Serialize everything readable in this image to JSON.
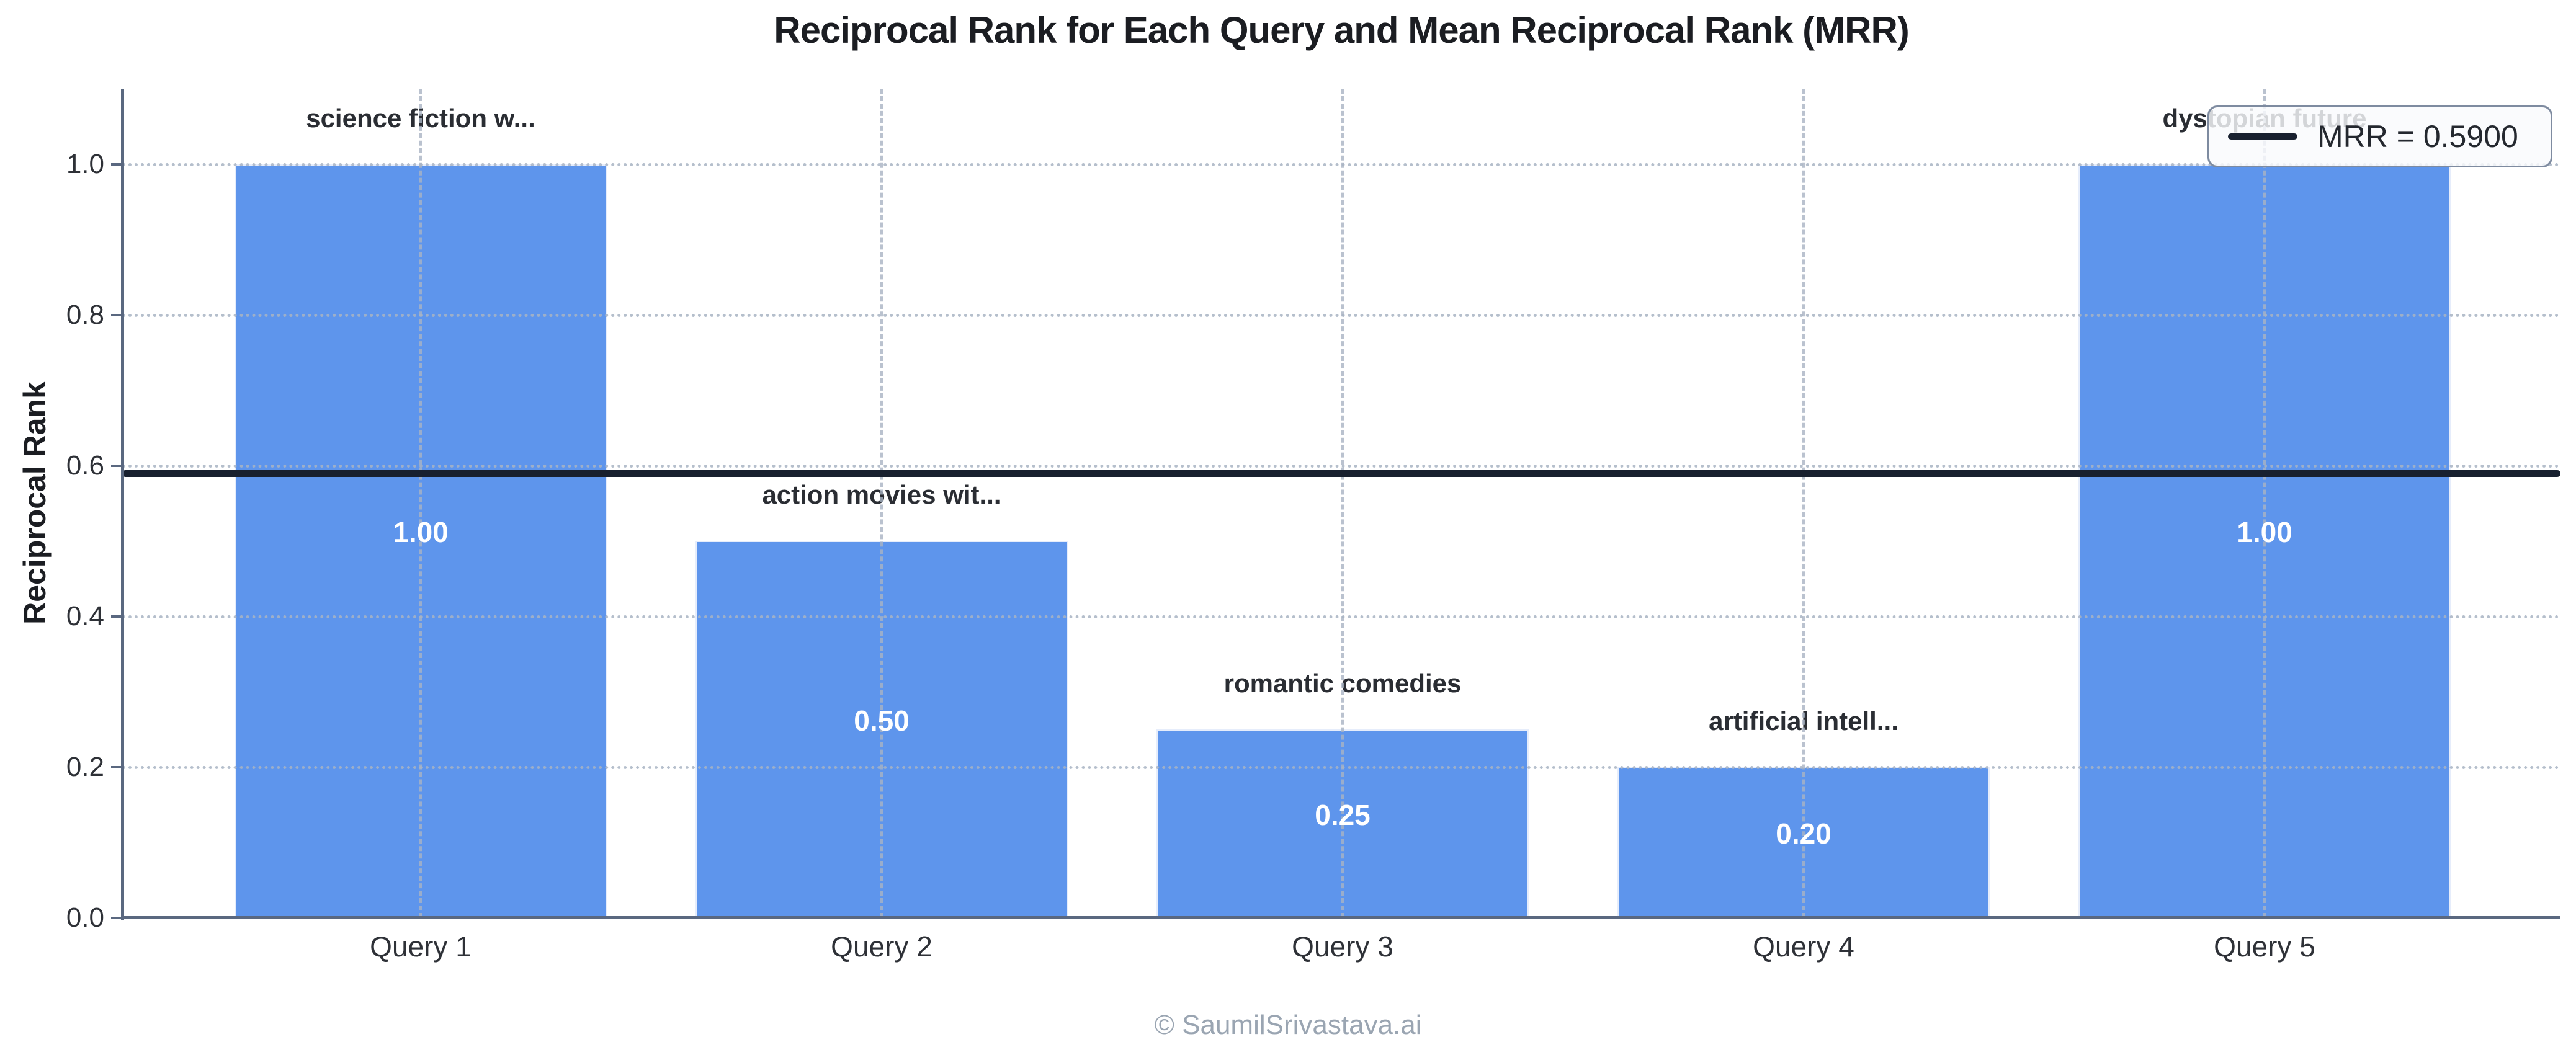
{
  "chart_data": {
    "type": "bar",
    "title": "Reciprocal Rank for Each Query and Mean Reciprocal Rank (MRR)",
    "ylabel": "Reciprocal Rank",
    "xlabel": "",
    "categories": [
      "Query 1",
      "Query 2",
      "Query 3",
      "Query 4",
      "Query 5"
    ],
    "values": [
      1.0,
      0.5,
      0.25,
      0.2,
      1.0
    ],
    "value_labels": [
      "1.00",
      "0.50",
      "0.25",
      "0.20",
      "1.00"
    ],
    "bar_annotations": [
      "science fiction w...",
      "action movies wit...",
      "romantic comedies",
      "artificial intell...",
      "dystopian future"
    ],
    "ylim": [
      0.0,
      1.1
    ],
    "yticks": [
      {
        "value": 0.0,
        "label": "0.0"
      },
      {
        "value": 0.2,
        "label": "0.2"
      },
      {
        "value": 0.4,
        "label": "0.4"
      },
      {
        "value": 0.6,
        "label": "0.6"
      },
      {
        "value": 0.8,
        "label": "0.8"
      },
      {
        "value": 1.0,
        "label": "1.0"
      }
    ],
    "grid": true,
    "legend_position": "upper right",
    "mrr": {
      "value": 0.59,
      "legend_label": "MRR = 0.5900"
    },
    "colors": {
      "bar": "#5E95EC",
      "bar_edge": "#E6EDFB",
      "mrr_line": "#18202F",
      "grid": "#A9B4C4",
      "spine": "#5A6880",
      "title_text": "#1B1D22",
      "tick_text": "#2E3137",
      "annotation_text": "#2A2D33",
      "value_label_text": "#FFFFFF",
      "legend_border": "#7E8BA0",
      "legend_bg": "rgba(249,250,252,0.82)",
      "footer_text": "#9AA5B2"
    }
  },
  "footer": {
    "text": "© SaumilSrivastava.ai"
  }
}
